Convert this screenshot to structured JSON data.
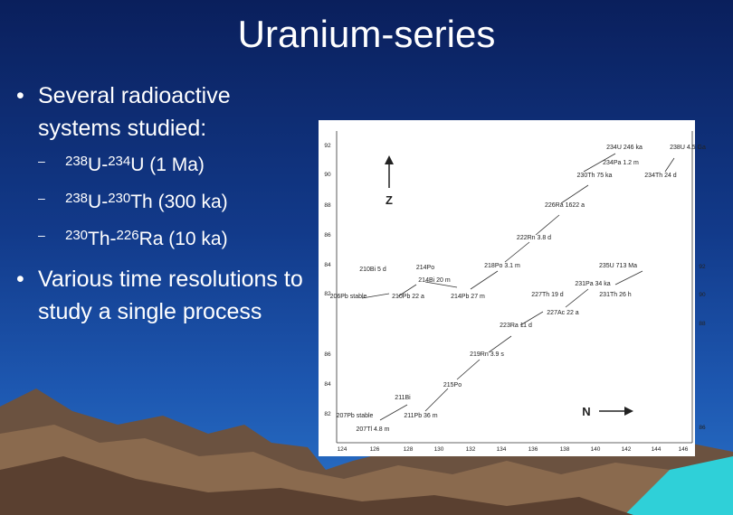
{
  "slide": {
    "title": "Uranium-series",
    "bullets": [
      {
        "text": "Several radioactive systems studied:",
        "subitems": [
          [
            {
              "sup": "238",
              "base": "U-"
            },
            {
              "sup": "234",
              "base": "U (1 Ma)"
            }
          ],
          [
            {
              "sup": "238",
              "base": "U-"
            },
            {
              "sup": "230",
              "base": "Th (300 ka)"
            }
          ],
          [
            {
              "sup": "230",
              "base": "Th-"
            },
            {
              "sup": "226",
              "base": "Ra (10 ka)"
            }
          ]
        ]
      },
      {
        "text": "Various time resolutions to study a single process",
        "subitems": []
      }
    ],
    "figure": {
      "x_ticks": [
        "124",
        "126",
        "128",
        "130",
        "132",
        "134",
        "136",
        "138",
        "140",
        "142",
        "144",
        "146"
      ],
      "left_ticks_upper": [
        "92",
        "90",
        "88",
        "86",
        "84",
        "82"
      ],
      "left_ticks_lower": [
        "86",
        "84",
        "82"
      ],
      "right_ticks": [
        "92",
        "90",
        "88",
        "86"
      ],
      "z_label": "Z",
      "n_label": "N",
      "nuclides": [
        "238U 4.5 Ga",
        "234U 246 ka",
        "234Pa 1.2 m",
        "234Th 24 d",
        "230Th 75 ka",
        "226Ra 1622 a",
        "222Rn 3.8 d",
        "218Po 3.1 m",
        "214Pb 27 m",
        "214Bi 20 m",
        "214Po",
        "210Pb 22 a",
        "210Bi 5 d",
        "206Pb stable",
        "235U 713 Ma",
        "231Pa 34 ka",
        "231Th 26 h",
        "227Ac 22 a",
        "227Th 19 d",
        "223Ra 11 d",
        "219Rn 3.9 s",
        "215Po",
        "211Pb 36 m",
        "211Bi",
        "207Tl 4.8 m",
        "207Pb stable"
      ]
    }
  }
}
